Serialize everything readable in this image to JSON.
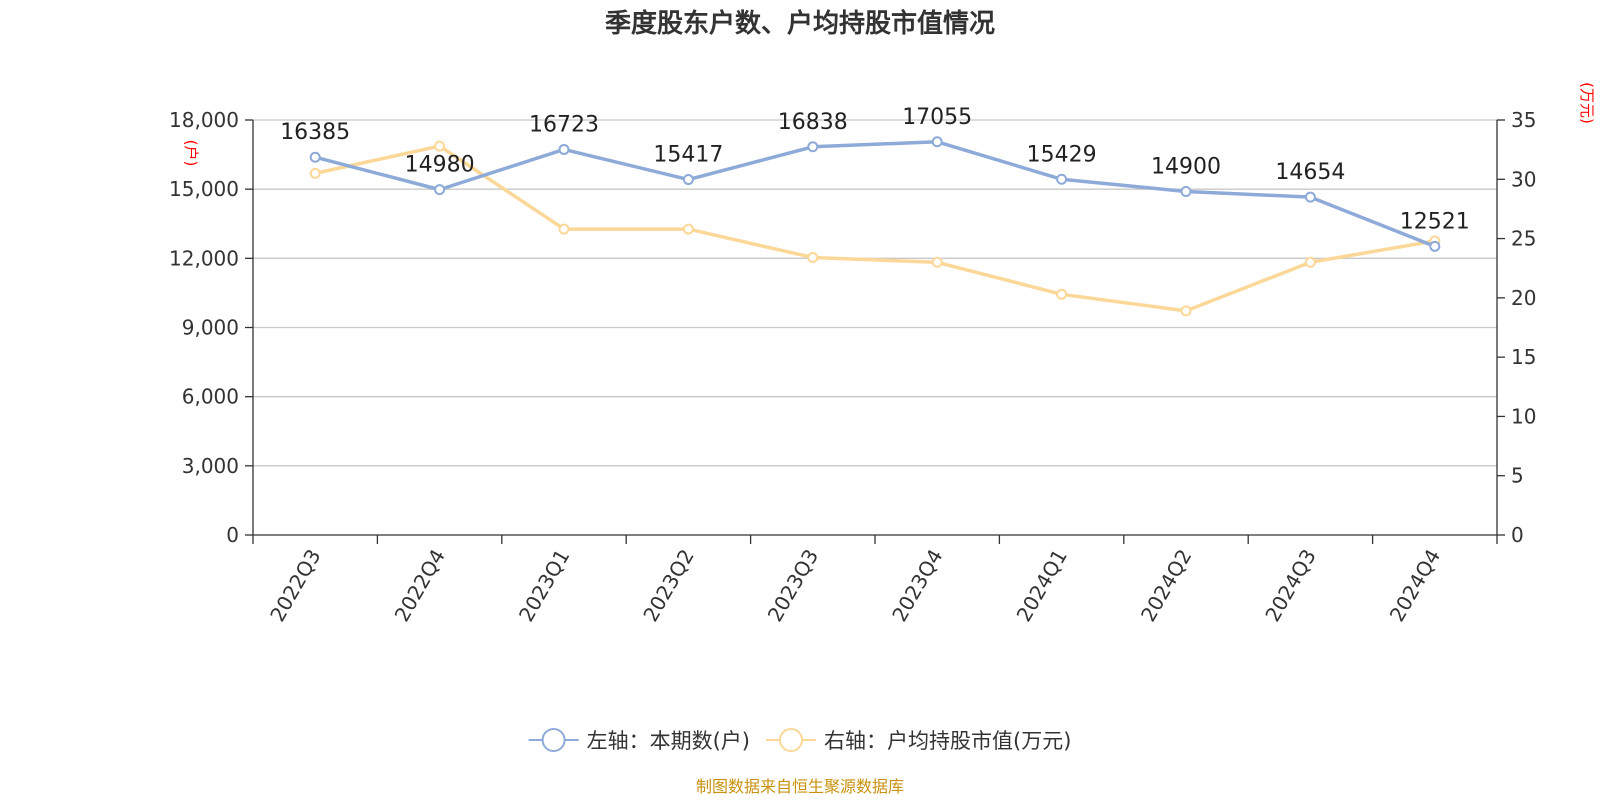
{
  "chart_data": {
    "type": "line",
    "title": "季度股东户数、户均持股市值情况",
    "categories": [
      "2022Q3",
      "2022Q4",
      "2023Q1",
      "2023Q2",
      "2023Q3",
      "2023Q4",
      "2024Q1",
      "2024Q2",
      "2024Q3",
      "2024Q4"
    ],
    "series": [
      {
        "name": "左轴：本期数(户)",
        "axis": "left",
        "color": "#8eaad8",
        "values": [
          16385,
          14980,
          16723,
          15417,
          16838,
          17055,
          15429,
          14900,
          14654,
          12521
        ],
        "data_labels": [
          "16385",
          "14980",
          "16723",
          "15417",
          "16838",
          "17055",
          "15429",
          "14900",
          "14654",
          "12521"
        ]
      },
      {
        "name": "右轴：户均持股市值(万元)",
        "axis": "right",
        "color": "#fbd898",
        "values": [
          30.5,
          32.8,
          25.8,
          25.8,
          23.4,
          23.0,
          20.3,
          18.9,
          23.0,
          24.8
        ]
      }
    ],
    "left_axis": {
      "unit_label": "(户)",
      "ylim": [
        0,
        18000
      ],
      "ticks": [
        0,
        3000,
        6000,
        9000,
        12000,
        15000,
        18000
      ],
      "tick_labels": [
        "0",
        "3,000",
        "6,000",
        "9,000",
        "12,000",
        "15,000",
        "18,000"
      ]
    },
    "right_axis": {
      "unit_label": "(万元)",
      "ylim": [
        0,
        35
      ],
      "ticks": [
        0,
        5,
        10,
        15,
        20,
        25,
        30,
        35
      ],
      "tick_labels": [
        "0",
        "5",
        "10",
        "15",
        "20",
        "25",
        "30",
        "35"
      ]
    },
    "grid": true,
    "legend_position": "bottom",
    "source": "制图数据来自恒生聚源数据库"
  }
}
